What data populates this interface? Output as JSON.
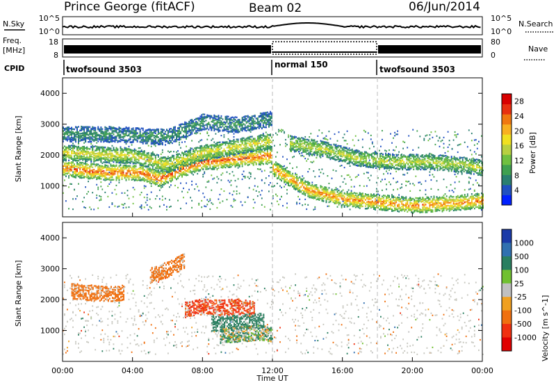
{
  "header": {
    "station": "Prince George (fitACF)",
    "beam": "Beam 02",
    "date": "06/Jun/2014"
  },
  "panels": {
    "nsky_label": "N.Sky",
    "nsky_ticks": [
      "10^5",
      "10^0"
    ],
    "nsearch_label": "N.Search",
    "nsearch_ticks": [
      "10^5",
      "10^0"
    ],
    "freq_label_1": "Freq.",
    "freq_label_2": "[MHz]",
    "freq_ticks": [
      "18",
      "8"
    ],
    "nave_label": "Nave",
    "nave_ticks": [
      "80",
      "0"
    ],
    "cpid_label": "CPID",
    "cpid_segments": [
      {
        "label": "twofsound 3503",
        "start": "00:00",
        "end": "12:00"
      },
      {
        "label": "normal 150",
        "start": "12:00",
        "end": "18:00"
      },
      {
        "label": "twofsound 3503",
        "start": "18:00",
        "end": "24:00"
      }
    ]
  },
  "colorbars": {
    "power": {
      "label": "Power [dB]",
      "ticks": [
        "4",
        "8",
        "12",
        "16",
        "20",
        "24",
        "28"
      ],
      "colors": [
        "#0020ff",
        "#2050c0",
        "#2a7f70",
        "#3fa050",
        "#70c040",
        "#b8d040",
        "#f0e020",
        "#f8b020",
        "#f07810",
        "#e83010",
        "#d80000"
      ]
    },
    "velocity": {
      "label": "Velocity [m s^-1]",
      "ticks": [
        "1000",
        "500",
        "100",
        "25",
        "-25",
        "-100",
        "-500",
        "-1000"
      ],
      "colors": [
        "#1a3aa8",
        "#3070b0",
        "#2a7f60",
        "#70c030",
        "#c0c0c0",
        "#f0a020",
        "#f07010",
        "#f03010",
        "#e00000"
      ]
    }
  },
  "chart_data": [
    {
      "type": "heatmap",
      "name": "power",
      "xlabel": "",
      "ylabel": "Slant Range [km]",
      "x_ticks": [
        "00:00",
        "04:00",
        "08:00",
        "12:00",
        "16:00",
        "20:00",
        "00:00"
      ],
      "y_ticks": [
        1000,
        2000,
        3000,
        4000
      ],
      "ylim": [
        0,
        4500
      ],
      "xlim_hours": [
        0,
        24
      ],
      "cpid_change_hours": [
        12,
        18
      ],
      "echo_bands": [
        {
          "x": [
            0,
            1.5,
            3,
            4.5,
            5.5,
            6.5,
            8,
            10,
            12
          ],
          "range_km": [
            1600,
            1500,
            1450,
            1450,
            1250,
            1500,
            1800,
            1900,
            2000
          ],
          "power_db": 26
        },
        {
          "x": [
            0,
            2,
            4,
            6,
            8,
            10,
            12
          ],
          "range_km": [
            2100,
            2050,
            2000,
            1700,
            2100,
            2300,
            2500
          ],
          "power_db": 18
        },
        {
          "x": [
            12,
            14,
            16,
            18,
            20,
            22,
            24
          ],
          "range_km": [
            1600,
            900,
            600,
            500,
            400,
            450,
            550
          ],
          "power_db": 24
        },
        {
          "x": [
            13,
            15,
            17,
            19,
            21,
            23,
            24
          ],
          "range_km": [
            2400,
            2200,
            1900,
            1800,
            1800,
            1700,
            1600
          ],
          "power_db": 16
        },
        {
          "x": [
            0,
            3,
            6,
            8,
            10,
            12
          ],
          "range_km": [
            2700,
            2700,
            2600,
            3100,
            3000,
            3200
          ],
          "power_db": 8
        }
      ]
    },
    {
      "type": "heatmap",
      "name": "velocity",
      "xlabel": "Time UT",
      "ylabel": "Slant Range [km]",
      "x_ticks": [
        "00:00",
        "04:00",
        "08:00",
        "12:00",
        "16:00",
        "20:00",
        "00:00"
      ],
      "y_ticks": [
        1000,
        2000,
        3000,
        4000
      ],
      "ylim": [
        0,
        4500
      ],
      "xlim_hours": [
        0,
        24
      ],
      "cpid_change_hours": [
        12,
        18
      ],
      "echo_bands": [
        {
          "x": [
            0.5,
            1.5,
            2.5,
            3.5
          ],
          "range_km": [
            2300,
            2250,
            2200,
            2250
          ],
          "velocity": -300
        },
        {
          "x": [
            7,
            8,
            9,
            10,
            11
          ],
          "range_km": [
            1700,
            1800,
            1750,
            1800,
            1700
          ],
          "velocity": -600
        },
        {
          "x": [
            8.5,
            9.5,
            10.5,
            11.5
          ],
          "range_km": [
            1250,
            1250,
            1300,
            1350
          ],
          "velocity": 300
        },
        {
          "x": [
            9,
            10,
            11,
            12
          ],
          "range_km": [
            850,
            900,
            950,
            900
          ],
          "velocity": 80
        },
        {
          "x": [
            5,
            6,
            7
          ],
          "range_km": [
            2800,
            3000,
            3300
          ],
          "velocity": -300
        }
      ]
    }
  ]
}
